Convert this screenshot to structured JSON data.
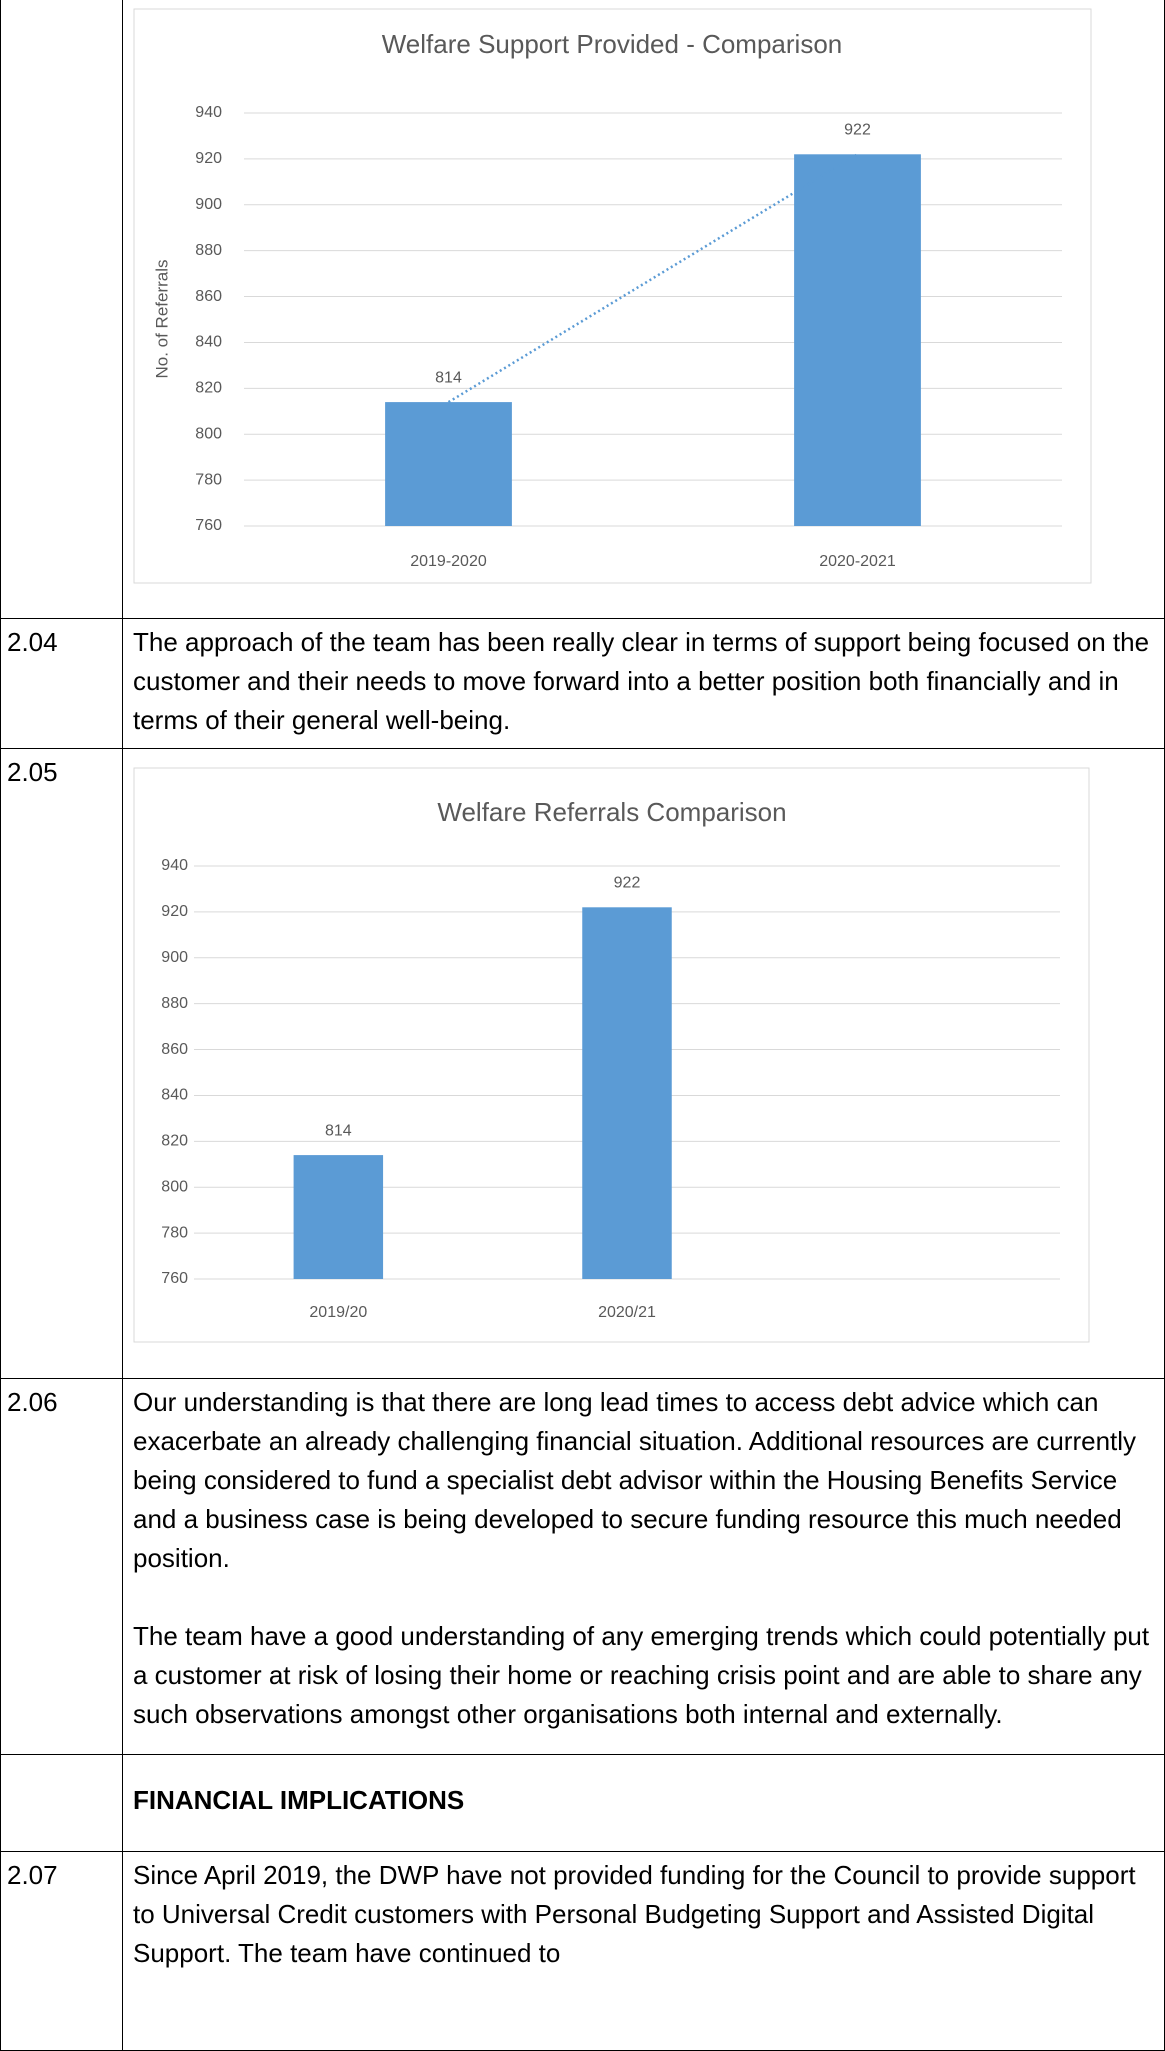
{
  "rows": [
    {
      "number": "2.04",
      "text": "The approach of the team has been really clear in terms of support being focused on the customer and their needs to move forward into a better position both financially and in terms of their general well-being."
    },
    {
      "number": "2.05"
    },
    {
      "number": "2.06",
      "paragraphs": [
        "Our understanding is that there are long lead times to access debt advice which can exacerbate an already challenging financial situation. Additional resources are currently being considered to fund a specialist debt advisor within the Housing Benefits Service and a business case is being developed to secure funding resource this much needed position.",
        "The team have a good understanding of any emerging trends which could potentially put a customer at risk of losing their home or reaching crisis point and are able to share any such observations amongst other organisations both internal and externally."
      ]
    },
    {
      "heading": "FINANCIAL IMPLICATIONS"
    },
    {
      "number": "2.07",
      "text": "Since April 2019, the DWP have not provided funding for the Council to provide support to Universal Credit customers with Personal Budgeting Support and Assisted Digital Support. The team have continued to"
    }
  ],
  "chart_data": [
    {
      "type": "bar",
      "title": "Welfare Support Provided - Comparison",
      "y_label": "No. of Referrals",
      "categories": [
        "2019-2020",
        "2020-2021"
      ],
      "values": [
        814,
        922
      ],
      "color": "#5b9bd5",
      "ylim": [
        760,
        940
      ],
      "yticks": [
        760,
        780,
        800,
        820,
        840,
        860,
        880,
        900,
        920,
        940
      ],
      "grid": true,
      "data_labels": true,
      "trendline": true
    },
    {
      "type": "bar",
      "title": "Welfare Referrals Comparison",
      "categories": [
        "2019/20",
        "2020/21",
        null
      ],
      "values": [
        814,
        922,
        null
      ],
      "color": "#5b9bd5",
      "ylim": [
        760,
        940
      ],
      "yticks": [
        760,
        780,
        800,
        820,
        840,
        860,
        880,
        900,
        920,
        940
      ],
      "grid": true,
      "data_labels": true,
      "trendline": false
    }
  ]
}
